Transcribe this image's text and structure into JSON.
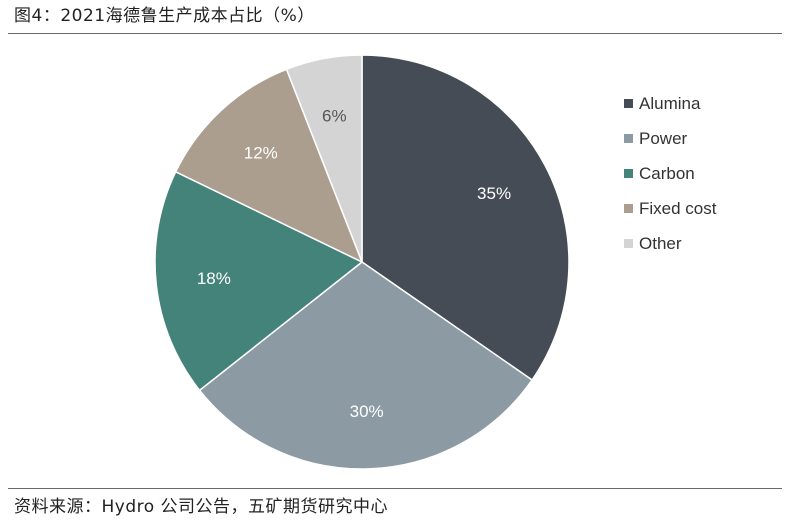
{
  "title": "图4：2021海德鲁生产成本占比（%）",
  "source": "资料来源：Hydro 公司公告，五矿期货研究中心",
  "chart_data": {
    "type": "pie",
    "title": "图4：2021海德鲁生产成本占比（%）",
    "legend_position": "right",
    "slices": [
      {
        "label": "Alumina",
        "value": 35,
        "display": "35%",
        "color": "#464c55",
        "label_color": "#ffffff"
      },
      {
        "label": "Power",
        "value": 30,
        "display": "30%",
        "color": "#8c9aa3",
        "label_color": "#ffffff"
      },
      {
        "label": "Carbon",
        "value": 18,
        "display": "18%",
        "color": "#44837a",
        "label_color": "#ffffff"
      },
      {
        "label": "Fixed cost",
        "value": 12,
        "display": "12%",
        "color": "#ac9e8f",
        "label_color": "#ffffff"
      },
      {
        "label": "Other",
        "value": 6,
        "display": "6%",
        "color": "#d4d4d4",
        "label_color": "#555555"
      }
    ]
  }
}
